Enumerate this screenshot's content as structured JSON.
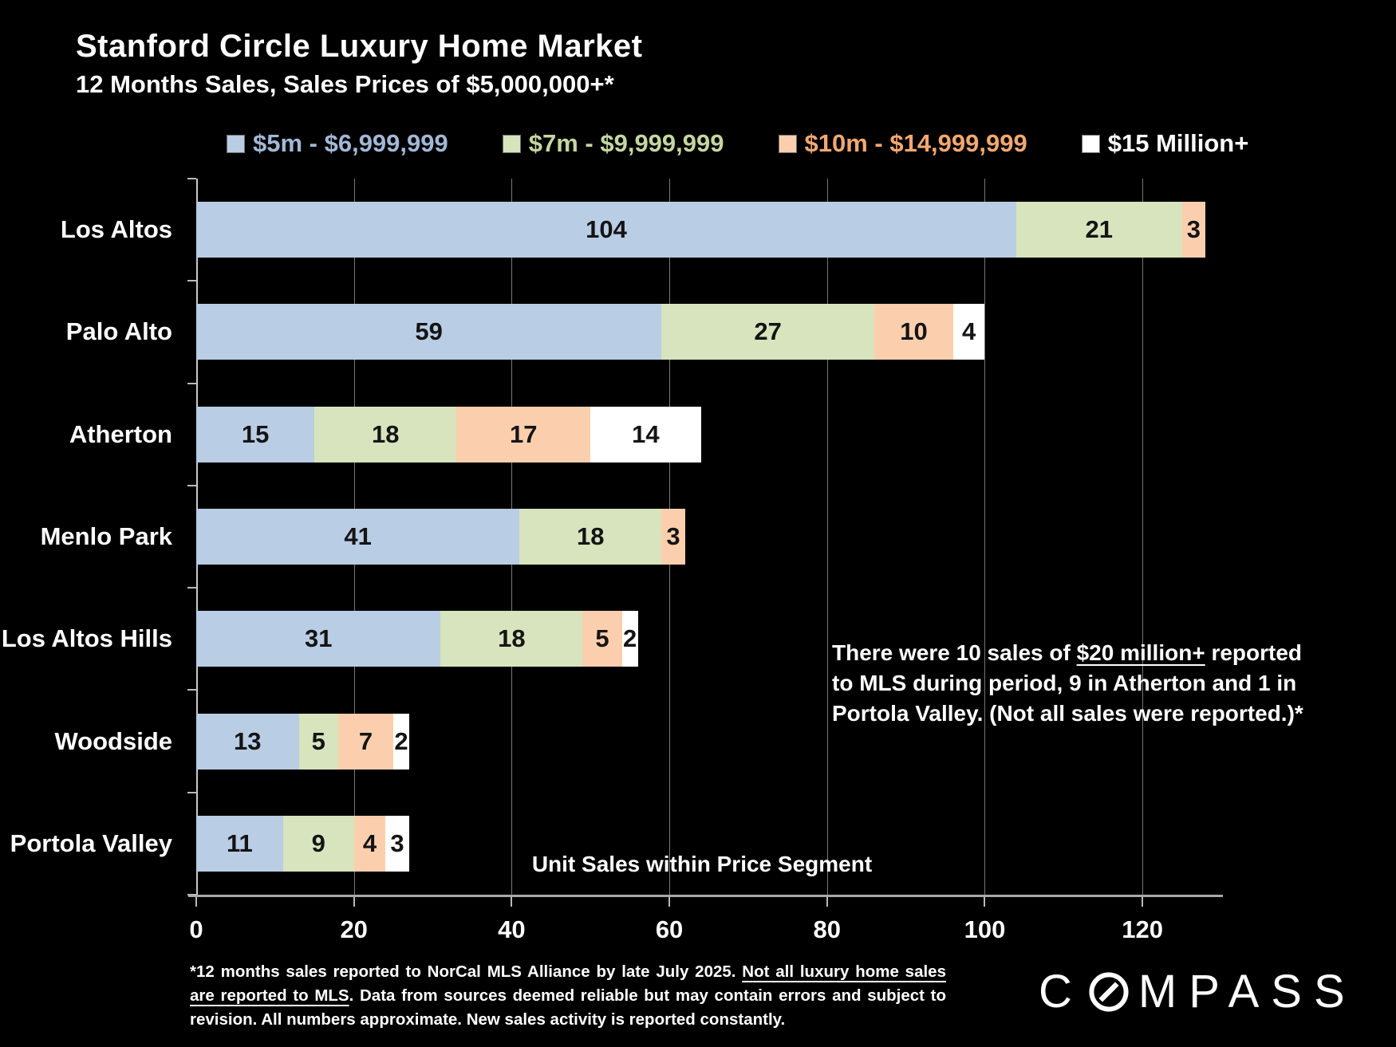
{
  "title": "Stanford Circle Luxury Home Market",
  "subtitle": "12 Months Sales, Sales Prices of $5,000,000+*",
  "chart_data": {
    "type": "bar",
    "orientation": "horizontal",
    "stacked": true,
    "grid": true,
    "legend_position": "top",
    "categories": [
      "Los Altos",
      "Palo Alto",
      "Atherton",
      "Menlo Park",
      "Los Altos Hills",
      "Woodside",
      "Portola Valley"
    ],
    "series": [
      {
        "name": "$5m - $6,999,999",
        "color": "#b9cde5",
        "label_color": "#a2b8d6",
        "values": [
          104,
          59,
          15,
          41,
          31,
          13,
          11
        ]
      },
      {
        "name": "$7m - $9,999,999",
        "color": "#d7e4bd",
        "label_color": "#c5d7a0",
        "values": [
          21,
          27,
          18,
          18,
          18,
          5,
          9
        ]
      },
      {
        "name": "$10m - $14,999,999",
        "color": "#fbcfad",
        "label_color": "#f3a871",
        "values": [
          3,
          10,
          17,
          3,
          5,
          7,
          4
        ]
      },
      {
        "name": "$15 Million+",
        "color": "#ffffff",
        "label_color": "#ffffff",
        "values": [
          0,
          4,
          14,
          0,
          2,
          2,
          3
        ]
      }
    ],
    "xlabel": "Unit Sales within Price Segment",
    "xlim": [
      0,
      130
    ],
    "xticks": [
      0,
      20,
      40,
      60,
      80,
      100,
      120
    ]
  },
  "annotation": {
    "line1_prefix": "There were 10 sales of ",
    "line1_underlined": "$20 million+",
    "line1_suffix": " reported",
    "line2": "to MLS during period, 9 in Atherton and 1 in",
    "line3": "Portola Valley. (Not all sales were reported.)*"
  },
  "footnote": {
    "part1": "*12 months sales reported to NorCal MLS Alliance by late July 2025. ",
    "underlined": "Not all luxury home sales are reported to MLS",
    "part2": ". Data from sources deemed reliable but may contain errors and subject to revision. All numbers approximate. New sales activity is reported constantly."
  },
  "brand": {
    "name": "COMPASS"
  }
}
